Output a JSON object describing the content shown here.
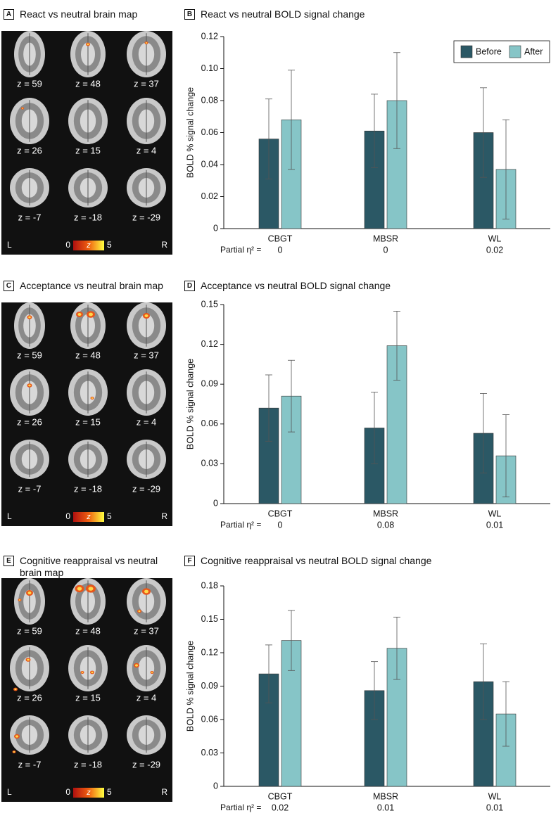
{
  "brain_maps": [
    {
      "label": "A",
      "title": "React vs neutral brain map",
      "slices": [
        "z = 59",
        "z = 48",
        "z = 37",
        "z = 26",
        "z = 15",
        "z = 4",
        "z = -7",
        "z = -18",
        "z = -29"
      ],
      "left": "L",
      "right": "R",
      "colorbar": {
        "min": "0",
        "symbol": "z",
        "max": "5"
      }
    },
    {
      "label": "C",
      "title": "Acceptance vs neutral brain map",
      "slices": [
        "z = 59",
        "z = 48",
        "z = 37",
        "z = 26",
        "z = 15",
        "z = 4",
        "z = -7",
        "z = -18",
        "z = -29"
      ],
      "left": "L",
      "right": "R",
      "colorbar": {
        "min": "0",
        "symbol": "z",
        "max": "5"
      }
    },
    {
      "label": "E",
      "title": "Cognitive reappraisal vs neutral brain map",
      "slices": [
        "z = 59",
        "z = 48",
        "z = 37",
        "z = 26",
        "z = 15",
        "z = 4",
        "z = -7",
        "z = -18",
        "z = -29"
      ],
      "left": "L",
      "right": "R",
      "colorbar": {
        "min": "0",
        "symbol": "z",
        "max": "5"
      }
    }
  ],
  "chart_data": [
    {
      "type": "bar",
      "label": "B",
      "title": "React vs neutral BOLD signal change",
      "y_label": "BOLD % signal change",
      "categories": [
        "CBGT",
        "MBSR",
        "WL"
      ],
      "series": [
        {
          "name": "Before",
          "color": "#2b5865",
          "values": [
            0.056,
            0.061,
            0.06
          ],
          "errors": [
            0.025,
            0.023,
            0.028
          ]
        },
        {
          "name": "After",
          "color": "#86c5c7",
          "values": [
            0.068,
            0.08,
            0.037
          ],
          "errors": [
            0.031,
            0.03,
            0.031
          ]
        }
      ],
      "ylim": [
        0,
        0.12
      ],
      "yticks": [
        0,
        0.02,
        0.04,
        0.06,
        0.08,
        {
          "value": 0.1,
          "label": "0.10"
        },
        0.12
      ],
      "legend": "top-right",
      "effect_label": "Partial η² =",
      "effect_sizes": [
        0,
        0,
        0.02
      ]
    },
    {
      "type": "bar",
      "label": "D",
      "title": "Acceptance vs neutral BOLD signal change",
      "y_label": "BOLD % signal change",
      "categories": [
        "CBGT",
        "MBSR",
        "WL"
      ],
      "series": [
        {
          "color": "#2b5865",
          "values": [
            0.072,
            0.057,
            0.053
          ],
          "errors": [
            0.025,
            0.027,
            0.03
          ]
        },
        {
          "color": "#86c5c7",
          "values": [
            0.081,
            0.119,
            0.036
          ],
          "errors": [
            0.027,
            0.026,
            0.031
          ]
        }
      ],
      "ylim": [
        0,
        0.15
      ],
      "yticks": [
        0,
        0.03,
        0.06,
        0.09,
        0.12,
        0.15
      ],
      "effect_label": "Partial η² =",
      "effect_sizes": [
        0,
        0.08,
        0.01
      ]
    },
    {
      "type": "bar",
      "label": "F",
      "title": "Cognitive reappraisal vs neutral BOLD signal change",
      "y_label": "BOLD % signal change",
      "categories": [
        "CBGT",
        "MBSR",
        "WL"
      ],
      "series": [
        {
          "color": "#2b5865",
          "values": [
            0.101,
            0.086,
            0.094
          ],
          "errors": [
            0.026,
            0.026,
            0.034
          ]
        },
        {
          "color": "#86c5c7",
          "values": [
            0.131,
            0.124,
            0.065
          ],
          "errors": [
            0.027,
            0.028,
            0.029
          ]
        }
      ],
      "ylim": [
        0,
        0.18
      ],
      "yticks": [
        0,
        0.03,
        0.06,
        0.09,
        0.12,
        0.15,
        0.18
      ],
      "effect_label": "Partial η² =",
      "effect_sizes": [
        0.02,
        0.01,
        0.01
      ]
    }
  ]
}
